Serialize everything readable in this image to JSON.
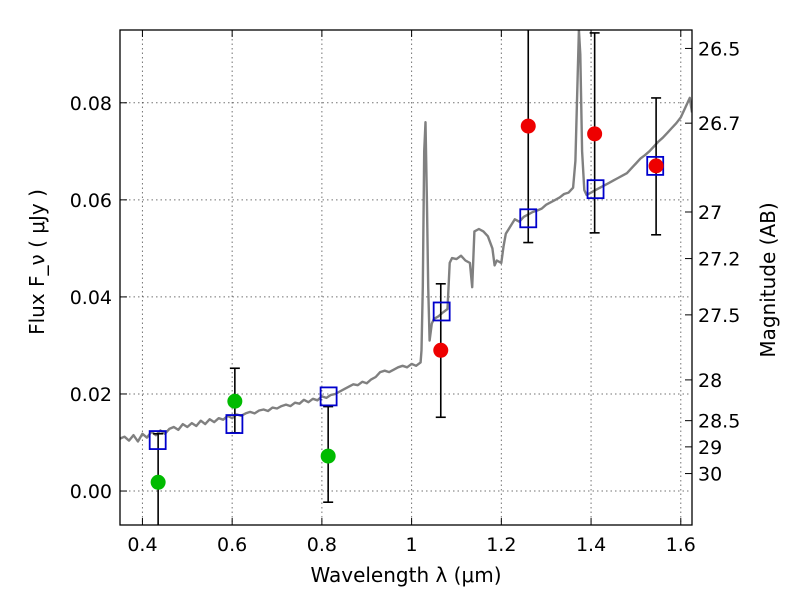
{
  "chart_data": {
    "type": "scatter",
    "xlabel": "Wavelength  λ (μm)",
    "ylabel": "Flux  F_ν  ( μJy )",
    "ylabel_right": "Magnitude (AB)",
    "xlim": [
      0.35,
      1.625
    ],
    "ylim": [
      -0.007,
      0.095
    ],
    "grid": true,
    "x_ticks": [
      0.4,
      0.6,
      0.8,
      1.0,
      1.2,
      1.4,
      1.6
    ],
    "x_tick_labels": [
      "0.4",
      "0.6",
      "0.8",
      "1",
      "1.2",
      "1.4",
      "1.6"
    ],
    "y_ticks": [
      0.0,
      0.02,
      0.04,
      0.06,
      0.08
    ],
    "y_tick_labels": [
      "0.00",
      "0.02",
      "0.04",
      "0.06",
      "0.08"
    ],
    "right_ticks": [
      {
        "label": "26.5",
        "flux": 0.0912
      },
      {
        "label": "26.7",
        "flux": 0.0758
      },
      {
        "label": "27",
        "flux": 0.0575
      },
      {
        "label": "27.2",
        "flux": 0.0479
      },
      {
        "label": "27.5",
        "flux": 0.0363
      },
      {
        "label": "28",
        "flux": 0.0229
      },
      {
        "label": "28.5",
        "flux": 0.0145
      },
      {
        "label": "29",
        "flux": 0.0091
      },
      {
        "label": "30",
        "flux": 0.0036
      }
    ],
    "series": [
      {
        "kind": "line",
        "color": "#808080",
        "points": [
          [
            0.35,
            0.0108
          ],
          [
            0.36,
            0.0112
          ],
          [
            0.37,
            0.0104
          ],
          [
            0.38,
            0.0115
          ],
          [
            0.39,
            0.0102
          ],
          [
            0.4,
            0.0118
          ],
          [
            0.41,
            0.011
          ],
          [
            0.42,
            0.0122
          ],
          [
            0.43,
            0.0115
          ],
          [
            0.44,
            0.0125
          ],
          [
            0.45,
            0.0118
          ],
          [
            0.46,
            0.0128
          ],
          [
            0.47,
            0.0132
          ],
          [
            0.48,
            0.0126
          ],
          [
            0.49,
            0.0138
          ],
          [
            0.5,
            0.0132
          ],
          [
            0.51,
            0.014
          ],
          [
            0.52,
            0.0134
          ],
          [
            0.53,
            0.0145
          ],
          [
            0.54,
            0.0138
          ],
          [
            0.55,
            0.0148
          ],
          [
            0.56,
            0.0142
          ],
          [
            0.57,
            0.015
          ],
          [
            0.58,
            0.0147
          ],
          [
            0.59,
            0.0155
          ],
          [
            0.6,
            0.015
          ],
          [
            0.61,
            0.0158
          ],
          [
            0.62,
            0.0155
          ],
          [
            0.63,
            0.016
          ],
          [
            0.64,
            0.0163
          ],
          [
            0.65,
            0.016
          ],
          [
            0.66,
            0.0166
          ],
          [
            0.67,
            0.0168
          ],
          [
            0.68,
            0.0165
          ],
          [
            0.69,
            0.0172
          ],
          [
            0.7,
            0.017
          ],
          [
            0.71,
            0.0175
          ],
          [
            0.72,
            0.0178
          ],
          [
            0.73,
            0.0175
          ],
          [
            0.74,
            0.0182
          ],
          [
            0.75,
            0.018
          ],
          [
            0.76,
            0.0188
          ],
          [
            0.77,
            0.0183
          ],
          [
            0.78,
            0.019
          ],
          [
            0.79,
            0.0187
          ],
          [
            0.8,
            0.0195
          ],
          [
            0.81,
            0.0192
          ],
          [
            0.82,
            0.0198
          ],
          [
            0.83,
            0.02
          ],
          [
            0.84,
            0.0205
          ],
          [
            0.85,
            0.021
          ],
          [
            0.86,
            0.0215
          ],
          [
            0.87,
            0.022
          ],
          [
            0.88,
            0.0218
          ],
          [
            0.89,
            0.0225
          ],
          [
            0.9,
            0.0222
          ],
          [
            0.91,
            0.023
          ],
          [
            0.92,
            0.0235
          ],
          [
            0.93,
            0.0245
          ],
          [
            0.94,
            0.0248
          ],
          [
            0.95,
            0.0245
          ],
          [
            0.96,
            0.025
          ],
          [
            0.97,
            0.0255
          ],
          [
            0.98,
            0.0258
          ],
          [
            0.99,
            0.0255
          ],
          [
            1.0,
            0.0262
          ],
          [
            1.01,
            0.0258
          ],
          [
            1.02,
            0.0265
          ],
          [
            1.022,
            0.029
          ],
          [
            1.025,
            0.042
          ],
          [
            1.028,
            0.07
          ],
          [
            1.031,
            0.076
          ],
          [
            1.034,
            0.06
          ],
          [
            1.037,
            0.042
          ],
          [
            1.04,
            0.031
          ],
          [
            1.045,
            0.0345
          ],
          [
            1.05,
            0.0355
          ],
          [
            1.06,
            0.036
          ],
          [
            1.07,
            0.0368
          ],
          [
            1.08,
            0.0375
          ],
          [
            1.085,
            0.047
          ],
          [
            1.09,
            0.048
          ],
          [
            1.1,
            0.0478
          ],
          [
            1.11,
            0.0485
          ],
          [
            1.12,
            0.0475
          ],
          [
            1.13,
            0.047
          ],
          [
            1.135,
            0.042
          ],
          [
            1.14,
            0.0535
          ],
          [
            1.15,
            0.054
          ],
          [
            1.16,
            0.0535
          ],
          [
            1.17,
            0.0525
          ],
          [
            1.18,
            0.05
          ],
          [
            1.185,
            0.0465
          ],
          [
            1.19,
            0.0475
          ],
          [
            1.2,
            0.047
          ],
          [
            1.205,
            0.0505
          ],
          [
            1.21,
            0.053
          ],
          [
            1.22,
            0.0545
          ],
          [
            1.23,
            0.056
          ],
          [
            1.24,
            0.0555
          ],
          [
            1.25,
            0.0565
          ],
          [
            1.26,
            0.057
          ],
          [
            1.27,
            0.0575
          ],
          [
            1.28,
            0.0578
          ],
          [
            1.29,
            0.0582
          ],
          [
            1.3,
            0.059
          ],
          [
            1.31,
            0.0595
          ],
          [
            1.32,
            0.06
          ],
          [
            1.33,
            0.0605
          ],
          [
            1.34,
            0.0612
          ],
          [
            1.35,
            0.0615
          ],
          [
            1.36,
            0.0625
          ],
          [
            1.365,
            0.068
          ],
          [
            1.37,
            0.085
          ],
          [
            1.373,
            0.095
          ],
          [
            1.376,
            0.09
          ],
          [
            1.38,
            0.07
          ],
          [
            1.385,
            0.062
          ],
          [
            1.39,
            0.061
          ],
          [
            1.4,
            0.0615
          ],
          [
            1.41,
            0.062
          ],
          [
            1.42,
            0.0625
          ],
          [
            1.43,
            0.063
          ],
          [
            1.44,
            0.0635
          ],
          [
            1.45,
            0.064
          ],
          [
            1.46,
            0.0645
          ],
          [
            1.47,
            0.065
          ],
          [
            1.48,
            0.0655
          ],
          [
            1.49,
            0.0665
          ],
          [
            1.5,
            0.0675
          ],
          [
            1.51,
            0.0685
          ],
          [
            1.52,
            0.0692
          ],
          [
            1.53,
            0.07
          ],
          [
            1.54,
            0.071
          ],
          [
            1.55,
            0.072
          ],
          [
            1.56,
            0.0728
          ],
          [
            1.57,
            0.0738
          ],
          [
            1.58,
            0.0748
          ],
          [
            1.59,
            0.0758
          ],
          [
            1.6,
            0.077
          ],
          [
            1.61,
            0.079
          ],
          [
            1.62,
            0.081
          ],
          [
            1.625,
            0.078
          ]
        ]
      },
      {
        "kind": "square",
        "color": "#0000cc",
        "points": [
          [
            0.434,
            0.0105
          ],
          [
            0.605,
            0.0138
          ],
          [
            0.815,
            0.0195
          ],
          [
            1.067,
            0.037
          ],
          [
            1.26,
            0.0562
          ],
          [
            1.41,
            0.0622
          ],
          [
            1.543,
            0.067
          ]
        ]
      },
      {
        "kind": "circle",
        "color": "#00bb00",
        "points": [
          {
            "x": 0.435,
            "y": 0.0018,
            "err_low": 0.016,
            "err_high": 0.01
          },
          {
            "x": 0.606,
            "y": 0.0185,
            "err_low": 0.0065,
            "err_high": 0.0068
          },
          {
            "x": 0.814,
            "y": 0.0072,
            "err_low": 0.0095,
            "err_high": 0.0102
          }
        ]
      },
      {
        "kind": "circle",
        "color": "#ee0000",
        "points": [
          {
            "x": 1.065,
            "y": 0.029,
            "err_low": 0.0138,
            "err_high": 0.0137
          },
          {
            "x": 1.26,
            "y": 0.0752,
            "err_low": 0.024,
            "err_high": 0.025
          },
          {
            "x": 1.408,
            "y": 0.0736,
            "err_low": 0.0204,
            "err_high": 0.0208
          },
          {
            "x": 1.545,
            "y": 0.067,
            "err_low": 0.0142,
            "err_high": 0.014
          }
        ]
      }
    ]
  }
}
